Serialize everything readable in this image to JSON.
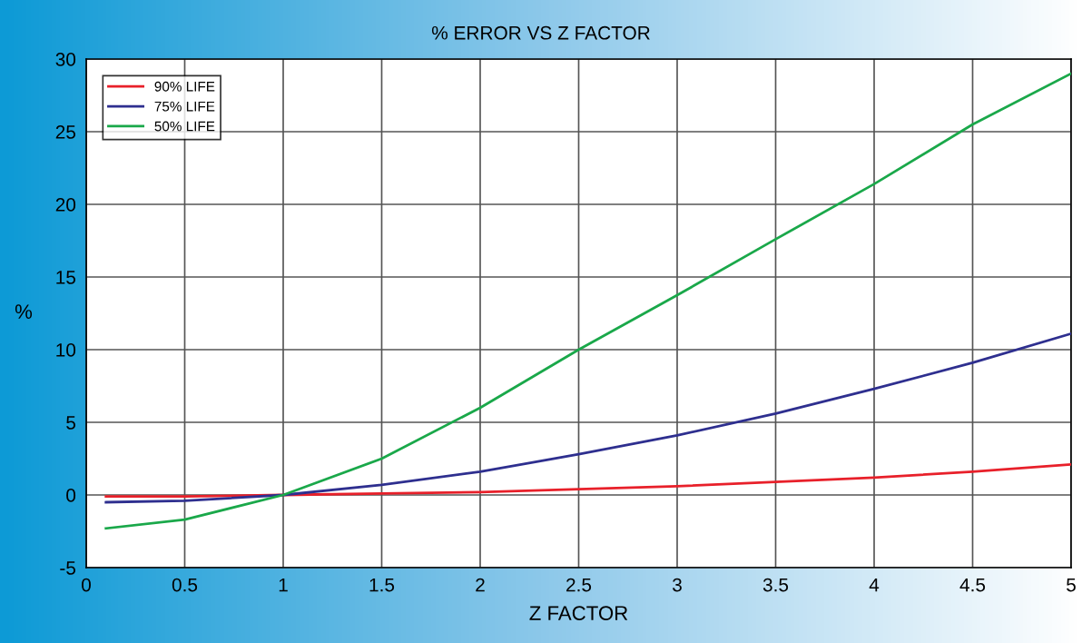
{
  "chart_data": {
    "type": "line",
    "title": "% ERROR VS Z FACTOR",
    "xlabel": "Z FACTOR",
    "ylabel": "%",
    "x": [
      0.1,
      0.5,
      1,
      1.5,
      2,
      2.5,
      3,
      3.5,
      4,
      4.5,
      5
    ],
    "series": [
      {
        "name": "90% LIFE",
        "color": "#e8202a",
        "values": [
          -0.1,
          -0.1,
          0,
          0.1,
          0.2,
          0.4,
          0.6,
          0.9,
          1.2,
          1.6,
          2.1
        ]
      },
      {
        "name": "75% LIFE",
        "color": "#2e2f8f",
        "values": [
          -0.5,
          -0.4,
          0,
          0.7,
          1.6,
          2.8,
          4.1,
          5.6,
          7.3,
          9.1,
          11.1
        ]
      },
      {
        "name": "50% LIFE",
        "color": "#1aa84a",
        "values": [
          -2.3,
          -1.7,
          0,
          2.5,
          6,
          10,
          13.75,
          17.6,
          21.4,
          25.5,
          29
        ]
      }
    ],
    "xlim": [
      0,
      5
    ],
    "xticks": [
      0,
      0.5,
      1,
      1.5,
      2,
      2.5,
      3,
      3.5,
      4,
      4.5,
      5
    ],
    "ylim": [
      -5,
      30
    ],
    "yticks": [
      -5,
      0,
      5,
      10,
      15,
      20,
      25,
      30
    ],
    "grid": true,
    "legend": "top left",
    "marker": "none",
    "line_style": "solid"
  }
}
